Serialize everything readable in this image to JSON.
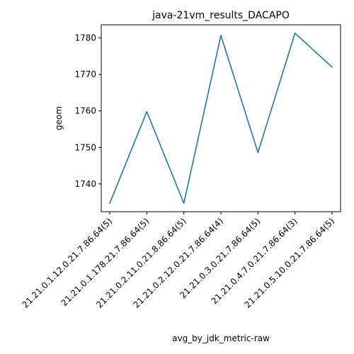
{
  "chart_data": {
    "type": "line",
    "title": "java-21vm_results_DACAPO",
    "xlabel": "avg_by_jdk_metric-raw",
    "ylabel": "geom",
    "categories": [
      "21.21.0.1.12.0.21.7.86.64(5)",
      "21.21.0.1.178.21.7.86.64(5)",
      "21.21.0.2.11.0.21.8.86.64(5)",
      "21.21.0.2.12.0.21.7.86.64(4)",
      "21.21.0.3.0.21.7.86.64(5)",
      "21.21.0.4.7.0.21.7.86.64(3)",
      "21.21.0.5.10.0.21.7.86.64(5)"
    ],
    "series": [
      {
        "values": [
          1734.7,
          1759.8,
          1734.7,
          1780.7,
          1748.6,
          1781.3,
          1772.0
        ]
      }
    ],
    "yticks": [
      "1740",
      "1750",
      "1760",
      "1770",
      "1780"
    ],
    "ylim": [
      1732.4,
      1783.6
    ],
    "grid": false,
    "line_color": "#1f77b4"
  }
}
